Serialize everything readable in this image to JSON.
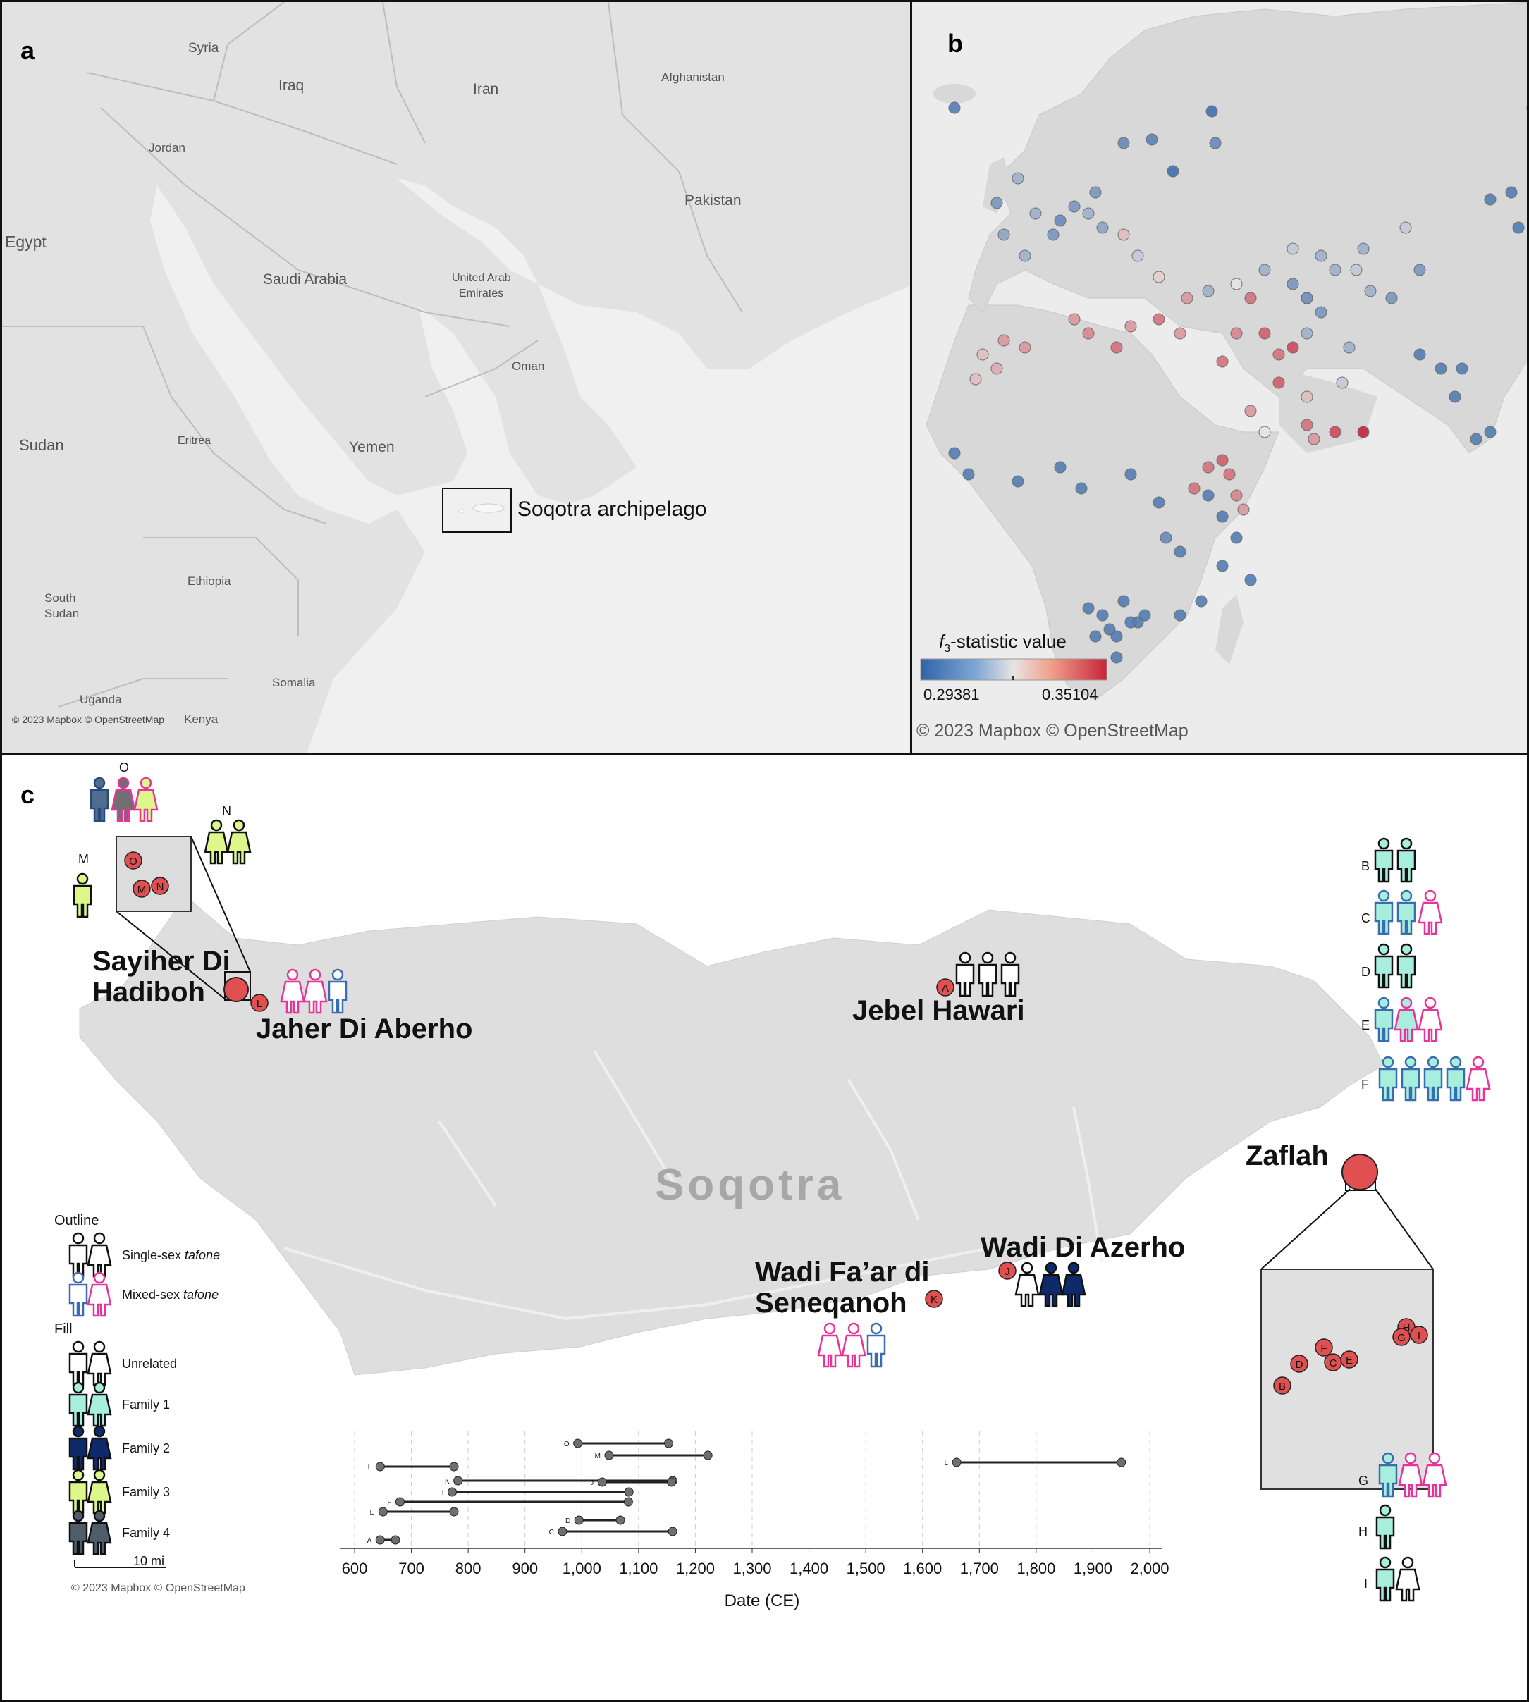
{
  "panel_a": {
    "letter": "a",
    "countries": [
      "Syria",
      "Iraq",
      "Iran",
      "Afghanistan",
      "Jordan",
      "Pakistan",
      "Egypt",
      "Saudi Arabia",
      "United Arab",
      "Emirates",
      "Oman",
      "Sudan",
      "Eritrea",
      "Yemen",
      "Ethiopia",
      "South",
      "Sudan",
      "Uganda",
      "Somalia",
      "Kenya"
    ],
    "callout": "Soqotra archipelago",
    "credit": "© 2023 Mapbox © OpenStreetMap"
  },
  "panel_b": {
    "letter": "b",
    "legend_title_f": "f",
    "legend_title_sub": "3",
    "legend_title_rest": "-statistic value",
    "legend_min": "0.29381",
    "legend_max": "0.35104",
    "credit": "© 2023 Mapbox © OpenStreetMap",
    "colors": {
      "low": "#2f64a8",
      "mid": "#e8e4e2",
      "high": "#c8243a"
    }
  },
  "panel_c": {
    "letter": "c",
    "island_label": "Soqotra",
    "sites": {
      "sayiher": "Sayiher Di\nHadiboh",
      "jaher": "Jaher Di Aberho",
      "jebel": "Jebel Hawari",
      "zaflah": "Zaflah",
      "wadi_azerho": "Wadi Di Azerho",
      "wadi_faar": "Wadi Fa’ar di\nSeneqanoh"
    },
    "legend": {
      "outline_title": "Outline",
      "single_pre": "Single-sex ",
      "single_it": "tafone",
      "mixed_pre": "Mixed-sex ",
      "mixed_it": "tafone",
      "fill_title": "Fill",
      "fills": [
        "Unrelated",
        "Family 1",
        "Family 2",
        "Family 3",
        "Family 4"
      ],
      "scale": "10 mi",
      "credit": "© 2023 Mapbox © OpenStreetMap"
    },
    "family_colors": {
      "unrelated": "#ffffff",
      "family1": "#a8eedc",
      "family2": "#0f2a6b",
      "family3": "#ddf78a",
      "family4": "#4f5d6b"
    },
    "right_labels": [
      "B",
      "C",
      "D",
      "E",
      "F",
      "G",
      "H",
      "I"
    ],
    "inset_labels_top": [
      "O",
      "N",
      "M"
    ]
  },
  "chart_data": {
    "type": "range",
    "xlabel": "Date (CE)",
    "xlim": [
      600,
      2000
    ],
    "xticks": [
      "600",
      "700",
      "800",
      "900",
      "1,000",
      "1,100",
      "1,200",
      "1,300",
      "1,400",
      "1,500",
      "1,600",
      "1,700",
      "1,800",
      "1,900",
      "2,000"
    ],
    "series": [
      {
        "label": "L",
        "start": 645,
        "end": 775
      },
      {
        "label": "K",
        "start": 782,
        "end": 1160
      },
      {
        "label": "I",
        "start": 772,
        "end": 1083
      },
      {
        "label": "F",
        "start": 680,
        "end": 1082
      },
      {
        "label": "E",
        "start": 650,
        "end": 775
      },
      {
        "label": "A",
        "start": 645,
        "end": 672
      },
      {
        "label": "O",
        "start": 993,
        "end": 1153
      },
      {
        "label": "M",
        "start": 1048,
        "end": 1222
      },
      {
        "label": "J",
        "start": 1036,
        "end": 1158
      },
      {
        "label": "D",
        "start": 995,
        "end": 1068
      },
      {
        "label": "C",
        "start": 966,
        "end": 1160
      },
      {
        "label": "L",
        "start": 1660,
        "end": 1950
      }
    ]
  }
}
